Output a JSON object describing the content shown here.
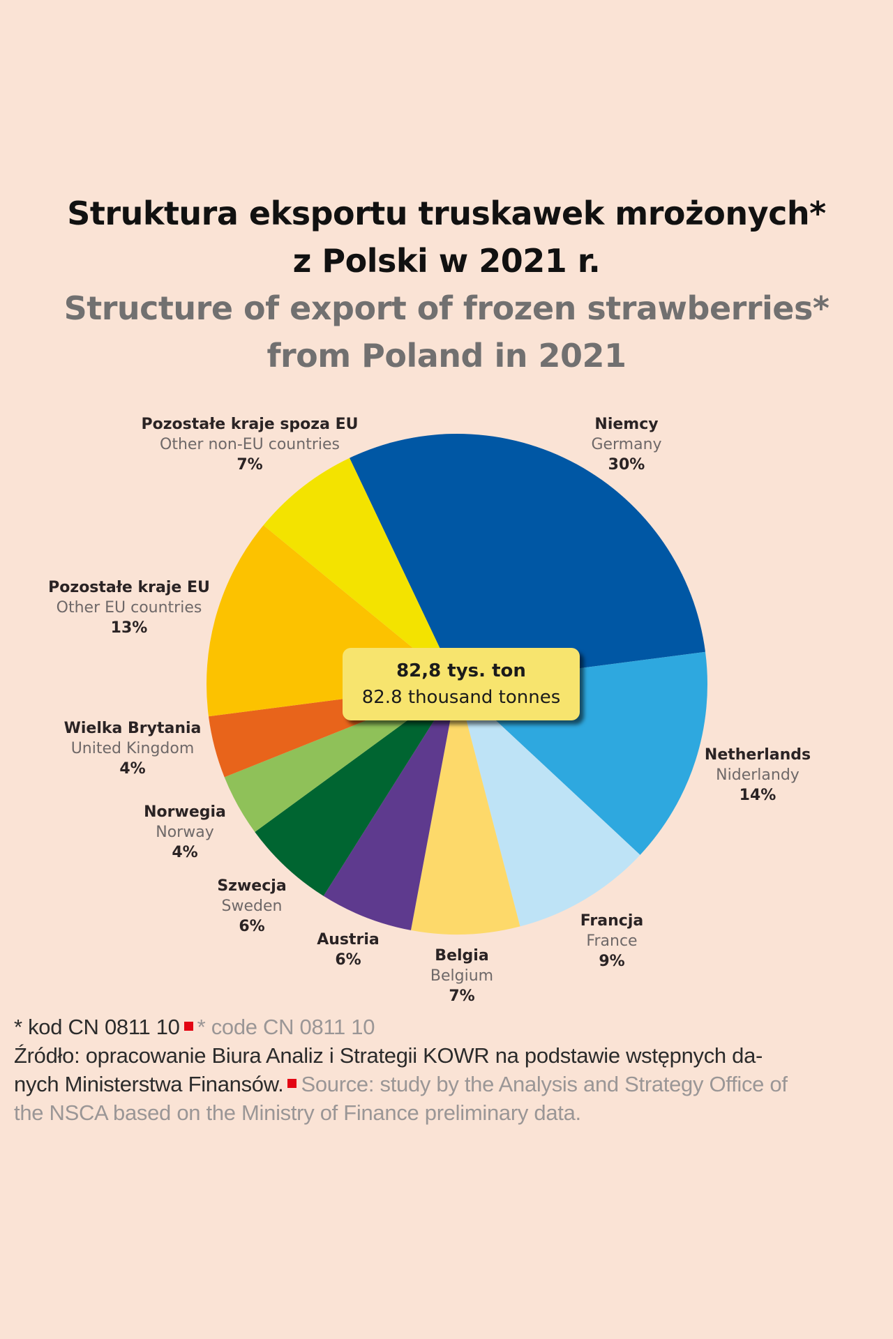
{
  "title": {
    "pl_line1": "Struktura eksportu truskawek mrożonych*",
    "pl_line2": "z Polski w 2021 r.",
    "en_line1": "Structure of export of frozen strawberries*",
    "en_line2": "from Poland in 2021"
  },
  "center_label": {
    "pl": "82,8 tys. ton",
    "en": "82.8 thousand tonnes",
    "background": "#F7E46E"
  },
  "labels": [
    {
      "key": "germany",
      "line1": "Niemcy",
      "line2": "Germany",
      "pct": "30%"
    },
    {
      "key": "netherlands",
      "line1": "Netherlands",
      "line2": "Niderlandy",
      "pct": "14%"
    },
    {
      "key": "france",
      "line1": "Francja",
      "line2": "France",
      "pct": "9%"
    },
    {
      "key": "belgium",
      "line1": "Belgia",
      "line2": "Belgium",
      "pct": "7%"
    },
    {
      "key": "austria",
      "line1": "Austria",
      "line2": "",
      "pct": "6%"
    },
    {
      "key": "sweden",
      "line1": "Szwecja",
      "line2": "Sweden",
      "pct": "6%"
    },
    {
      "key": "norway",
      "line1": "Norwegia",
      "line2": "Norway",
      "pct": "4%"
    },
    {
      "key": "uk",
      "line1": "Wielka Brytania",
      "line2": "United Kingdom",
      "pct": "4%"
    },
    {
      "key": "other_eu",
      "line1": "Pozostałe kraje EU",
      "line2": "Other EU countries",
      "pct": "13%"
    },
    {
      "key": "other_non_eu",
      "line1": "Pozostałe kraje spoza EU",
      "line2": "Other non-EU countries",
      "pct": "7%"
    }
  ],
  "footnote": {
    "code_pl": "* kod CN 0811 10",
    "code_en": "* code CN 0811 10",
    "source_pl_line1": "Źródło: opracowanie Biura Analiz i Strategii KOWR na podstawie wstępnych da-",
    "source_pl_line2": "nych Ministerstwa Finansów.",
    "source_en_line2": "Source: study by the Analysis and Strategy Office of",
    "source_en_line3": "the NSCA based on the Ministry of Finance preliminary data.",
    "separator_color": "#E30613"
  },
  "colors": {
    "background": "#FAE3D5"
  },
  "chart_data": {
    "type": "pie",
    "title": "Struktura eksportu truskawek mrożonych* z Polski w 2021 r. / Structure of export of frozen strawberries* from Poland in 2021",
    "total_label": "82,8 tys. ton / 82.8 thousand tonnes",
    "start_angle_deg": -25.4,
    "direction": "clockwise",
    "unit": "%",
    "slices": [
      {
        "label": "Niemcy / Germany",
        "value": 30,
        "color": "#0057A4"
      },
      {
        "label": "Niderlandy / Netherlands",
        "value": 14,
        "color": "#2EA8DF"
      },
      {
        "label": "Francja / France",
        "value": 9,
        "color": "#BEE3F6"
      },
      {
        "label": "Belgia / Belgium",
        "value": 7,
        "color": "#FDD96A"
      },
      {
        "label": "Austria",
        "value": 6,
        "color": "#5E3A8E"
      },
      {
        "label": "Szwecja / Sweden",
        "value": 6,
        "color": "#006531"
      },
      {
        "label": "Norwegia / Norway",
        "value": 4,
        "color": "#8FC159"
      },
      {
        "label": "Wielka Brytania / United Kingdom",
        "value": 4,
        "color": "#E8641B"
      },
      {
        "label": "Pozostałe kraje EU / Other EU countries",
        "value": 13,
        "color": "#FCC200"
      },
      {
        "label": "Pozostałe kraje spoza EU / Other non-EU countries",
        "value": 7,
        "color": "#F3E300"
      }
    ]
  }
}
